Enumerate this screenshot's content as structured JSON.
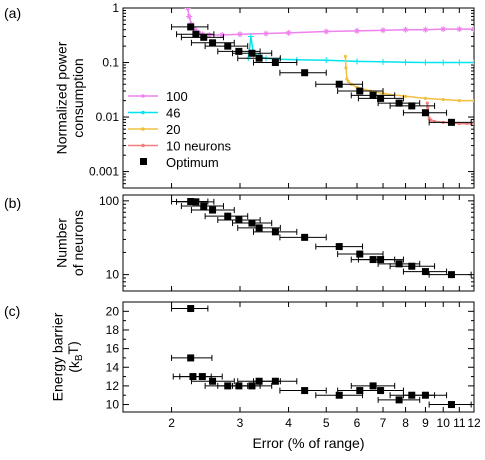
{
  "chart_data": [
    {
      "panel": "(a)",
      "type": "scatter",
      "ylabel_lines": [
        "Normalized power",
        "consumption"
      ],
      "xlim": [
        1.5,
        12
      ],
      "ylim": [
        0.0005,
        1
      ],
      "x_log": true,
      "y_log": true,
      "y_ticks": [
        1,
        0.1,
        0.01,
        0.001
      ],
      "y_tick_labels": [
        "1",
        "0.1",
        "0.01",
        "0.001"
      ],
      "legend_position": "left",
      "series": [
        {
          "name": "100",
          "color": "#ee82ee",
          "marker": "star",
          "x": [
            2.2,
            2.22,
            2.25,
            2.3,
            2.35,
            2.4,
            2.5,
            2.7,
            3.0,
            3.5,
            4.0,
            5.0,
            6.0,
            7.0,
            8.0,
            9.0,
            10.0,
            11.0,
            12.0
          ],
          "y": [
            1.0,
            0.7,
            0.5,
            0.4,
            0.35,
            0.33,
            0.32,
            0.32,
            0.33,
            0.34,
            0.35,
            0.37,
            0.38,
            0.39,
            0.4,
            0.4,
            0.41,
            0.41,
            0.41
          ]
        },
        {
          "name": "46",
          "color": "#00e5ee",
          "marker": "plus",
          "x": [
            3.15,
            3.17,
            3.2,
            3.25,
            3.35,
            3.5,
            3.8,
            4.2,
            5.0,
            6.0,
            7.0,
            8.0,
            9.0,
            10.0,
            11.0,
            12.0
          ],
          "y": [
            0.12,
            0.16,
            0.3,
            0.14,
            0.13,
            0.12,
            0.115,
            0.112,
            0.11,
            0.105,
            0.103,
            0.101,
            0.1,
            0.1,
            0.1,
            0.1
          ]
        },
        {
          "name": "20",
          "color": "#f2c040",
          "marker": "dot",
          "x": [
            5.6,
            5.62,
            5.65,
            5.7,
            5.8,
            6.0,
            6.5,
            7.0,
            8.0,
            9.0,
            10.0,
            11.0,
            12.0
          ],
          "y": [
            0.13,
            0.08,
            0.05,
            0.045,
            0.04,
            0.035,
            0.03,
            0.027,
            0.024,
            0.022,
            0.021,
            0.02,
            0.02
          ]
        },
        {
          "name": "10 neurons",
          "color": "#f08080",
          "marker": "dot",
          "x": [
            9.1,
            9.12,
            9.15,
            9.2,
            9.3,
            9.5,
            10.0,
            10.5,
            11.0,
            11.5,
            12.0
          ],
          "y": [
            0.018,
            0.015,
            0.012,
            0.0095,
            0.0088,
            0.0083,
            0.008,
            0.0078,
            0.0076,
            0.0076,
            0.0075
          ]
        },
        {
          "name": "Optimum",
          "color": "#000000",
          "marker": "square",
          "x": [
            2.24,
            2.31,
            2.42,
            2.55,
            2.79,
            2.98,
            3.22,
            3.36,
            3.7,
            4.4,
            5.4,
            6.1,
            6.6,
            6.9,
            7.7,
            8.3,
            9.0,
            10.5
          ],
          "y": [
            0.45,
            0.33,
            0.29,
            0.23,
            0.2,
            0.16,
            0.148,
            0.12,
            0.1,
            0.065,
            0.04,
            0.03,
            0.025,
            0.022,
            0.018,
            0.016,
            0.012,
            0.008
          ],
          "xerr_low": [
            0.24,
            0.25,
            0.3,
            0.3,
            0.35,
            0.35,
            0.35,
            0.4,
            0.45,
            0.6,
            0.7,
            0.75,
            0.8,
            0.85,
            0.9,
            1.0,
            1.1,
            1.3
          ],
          "xerr_high": [
            0.24,
            0.26,
            0.3,
            0.35,
            0.35,
            0.4,
            0.4,
            0.45,
            0.5,
            0.6,
            0.8,
            0.9,
            0.9,
            1.0,
            1.0,
            1.2,
            1.2,
            1.3
          ]
        }
      ]
    },
    {
      "panel": "(b)",
      "type": "scatter",
      "ylabel_lines": [
        "Number",
        "of neurons"
      ],
      "xlim": [
        1.5,
        12
      ],
      "ylim": [
        6,
        120
      ],
      "x_log": true,
      "y_log": true,
      "y_ticks": [
        100,
        10
      ],
      "y_tick_labels": [
        "100",
        "10"
      ],
      "series": [
        {
          "name": "Optimum",
          "color": "#000000",
          "marker": "square",
          "x": [
            2.24,
            2.31,
            2.42,
            2.55,
            2.79,
            2.98,
            3.22,
            3.36,
            3.7,
            4.4,
            5.4,
            6.1,
            6.6,
            6.9,
            7.7,
            8.3,
            9.0,
            10.5
          ],
          "y": [
            98,
            97,
            85,
            75,
            62,
            55,
            50,
            43,
            38,
            32,
            24,
            19,
            16,
            16,
            14,
            13,
            11,
            10
          ],
          "xerr_low": [
            0.24,
            0.25,
            0.3,
            0.3,
            0.35,
            0.35,
            0.35,
            0.4,
            0.45,
            0.6,
            0.7,
            0.75,
            0.8,
            0.85,
            0.9,
            1.0,
            1.1,
            1.3
          ],
          "xerr_high": [
            0.24,
            0.26,
            0.3,
            0.35,
            0.35,
            0.4,
            0.4,
            0.45,
            0.5,
            0.6,
            0.8,
            0.9,
            0.9,
            1.0,
            1.0,
            1.2,
            1.2,
            1.3
          ]
        }
      ]
    },
    {
      "panel": "(c)",
      "type": "scatter",
      "ylabel_lines": [
        "Energy barrier",
        "(kBT)"
      ],
      "ylabel_unit": {
        "open": "(k",
        "sub": "B",
        "close": "T)"
      },
      "xlabel": "Error (% of range)",
      "xlim": [
        1.5,
        12
      ],
      "ylim": [
        9.2,
        21
      ],
      "x_log": true,
      "y_log": false,
      "x_ticks": [
        2,
        3,
        4,
        5,
        6,
        7,
        8,
        9,
        10,
        11,
        12
      ],
      "x_tick_labels": [
        "2",
        "3",
        "4",
        "5",
        "6",
        "7",
        "8",
        "9",
        "10",
        "11",
        "12"
      ],
      "y_ticks": [
        20,
        18,
        16,
        14,
        12,
        10
      ],
      "y_tick_labels": [
        "20",
        "18",
        "16",
        "14",
        "12",
        "10"
      ],
      "series": [
        {
          "name": "Optimum",
          "color": "#000000",
          "marker": "square",
          "x": [
            2.24,
            2.24,
            2.27,
            2.4,
            2.55,
            2.79,
            2.98,
            3.22,
            3.36,
            3.7,
            4.4,
            5.4,
            6.1,
            6.6,
            6.9,
            7.7,
            8.3,
            9.0,
            10.5
          ],
          "y": [
            20.3,
            15.0,
            13.0,
            13.0,
            12.5,
            12.0,
            12.0,
            12.0,
            12.5,
            12.5,
            11.5,
            11.0,
            11.5,
            12.0,
            11.5,
            10.5,
            11.0,
            11.0,
            10.0
          ],
          "xerr_low": [
            0.24,
            0.24,
            0.25,
            0.3,
            0.3,
            0.35,
            0.35,
            0.35,
            0.4,
            0.45,
            0.6,
            0.7,
            0.75,
            0.8,
            0.85,
            0.9,
            1.0,
            1.1,
            1.3
          ],
          "xerr_high": [
            0.24,
            0.3,
            0.26,
            0.3,
            0.35,
            0.35,
            0.4,
            0.4,
            0.45,
            0.5,
            0.6,
            0.8,
            0.9,
            0.9,
            1.0,
            1.0,
            1.2,
            1.2,
            1.3
          ]
        }
      ]
    }
  ]
}
